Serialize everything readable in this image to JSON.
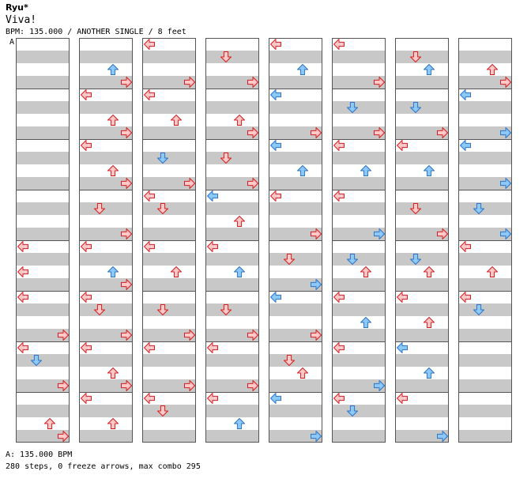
{
  "header": {
    "artist": "Ryu*",
    "title": "Viva!",
    "info": "BPM: 135.000 / ANOTHER SINGLE / 8 feet",
    "marker": "A"
  },
  "footer": {
    "bpm": "A: 135.000 BPM",
    "stats": "280 steps, 0 freeze arrows, max combo 295"
  },
  "colors": {
    "red_fill": "#ffc8c8",
    "red_stroke": "#d81c1c",
    "blue_fill": "#8cc8f8",
    "blue_stroke": "#2c74c8",
    "band": "#c8c8c8",
    "border": "#555555"
  },
  "chart": {
    "columns": 8,
    "measures_per_column": 8,
    "steps": [
      [
        0,
        4,
        0,
        "L",
        "r"
      ],
      [
        0,
        4,
        2,
        "L",
        "r"
      ],
      [
        0,
        5,
        0,
        "L",
        "r"
      ],
      [
        0,
        5,
        3,
        "R",
        "r"
      ],
      [
        0,
        6,
        0,
        "L",
        "r"
      ],
      [
        0,
        6,
        1,
        "D",
        "b"
      ],
      [
        0,
        6,
        3,
        "R",
        "r"
      ],
      [
        0,
        7,
        2,
        "U",
        "r"
      ],
      [
        0,
        7,
        3,
        "R",
        "r"
      ],
      [
        1,
        0,
        3,
        "R",
        "r"
      ],
      [
        1,
        0,
        2,
        "U",
        "b"
      ],
      [
        1,
        1,
        0,
        "L",
        "r"
      ],
      [
        1,
        1,
        2,
        "U",
        "r"
      ],
      [
        1,
        1,
        3,
        "R",
        "r"
      ],
      [
        1,
        2,
        0,
        "L",
        "r"
      ],
      [
        1,
        2,
        2,
        "U",
        "r"
      ],
      [
        1,
        2,
        3,
        "R",
        "r"
      ],
      [
        1,
        3,
        1,
        "D",
        "r"
      ],
      [
        1,
        3,
        3,
        "R",
        "r"
      ],
      [
        1,
        4,
        0,
        "L",
        "r"
      ],
      [
        1,
        4,
        2,
        "U",
        "b"
      ],
      [
        1,
        4,
        3,
        "R",
        "r"
      ],
      [
        1,
        5,
        0,
        "L",
        "r"
      ],
      [
        1,
        5,
        1,
        "D",
        "r"
      ],
      [
        1,
        5,
        3,
        "R",
        "r"
      ],
      [
        1,
        6,
        0,
        "L",
        "r"
      ],
      [
        1,
        6,
        2,
        "U",
        "r"
      ],
      [
        1,
        6,
        3,
        "R",
        "r"
      ],
      [
        1,
        7,
        0,
        "L",
        "r"
      ],
      [
        1,
        7,
        2,
        "U",
        "r"
      ],
      [
        2,
        0,
        3,
        "R",
        "r"
      ],
      [
        2,
        0,
        0,
        "L",
        "r"
      ],
      [
        2,
        1,
        0,
        "L",
        "r"
      ],
      [
        2,
        1,
        2,
        "U",
        "r"
      ],
      [
        2,
        2,
        1,
        "D",
        "b"
      ],
      [
        2,
        2,
        3,
        "R",
        "r"
      ],
      [
        2,
        3,
        0,
        "L",
        "r"
      ],
      [
        2,
        3,
        1,
        "D",
        "r"
      ],
      [
        2,
        4,
        0,
        "L",
        "r"
      ],
      [
        2,
        4,
        2,
        "U",
        "r"
      ],
      [
        2,
        5,
        3,
        "R",
        "r"
      ],
      [
        2,
        5,
        1,
        "D",
        "r"
      ],
      [
        2,
        6,
        0,
        "L",
        "r"
      ],
      [
        2,
        6,
        3,
        "R",
        "r"
      ],
      [
        2,
        7,
        0,
        "L",
        "r"
      ],
      [
        2,
        7,
        1,
        "D",
        "r"
      ],
      [
        3,
        0,
        3,
        "R",
        "r"
      ],
      [
        3,
        0,
        1,
        "D",
        "r"
      ],
      [
        3,
        1,
        2,
        "U",
        "r"
      ],
      [
        3,
        1,
        3,
        "R",
        "r"
      ],
      [
        3,
        2,
        1,
        "D",
        "r"
      ],
      [
        3,
        2,
        3,
        "R",
        "r"
      ],
      [
        3,
        3,
        0,
        "L",
        "b"
      ],
      [
        3,
        3,
        2,
        "U",
        "r"
      ],
      [
        3,
        4,
        0,
        "L",
        "r"
      ],
      [
        3,
        4,
        2,
        "U",
        "b"
      ],
      [
        3,
        5,
        1,
        "D",
        "r"
      ],
      [
        3,
        5,
        3,
        "R",
        "r"
      ],
      [
        3,
        6,
        0,
        "L",
        "r"
      ],
      [
        3,
        6,
        3,
        "R",
        "r"
      ],
      [
        3,
        7,
        0,
        "L",
        "r"
      ],
      [
        3,
        7,
        2,
        "U",
        "b"
      ],
      [
        4,
        0,
        0,
        "L",
        "r"
      ],
      [
        4,
        0,
        2,
        "U",
        "b"
      ],
      [
        4,
        1,
        0,
        "L",
        "b"
      ],
      [
        4,
        1,
        3,
        "R",
        "r"
      ],
      [
        4,
        2,
        0,
        "L",
        "b"
      ],
      [
        4,
        2,
        2,
        "U",
        "b"
      ],
      [
        4,
        3,
        0,
        "L",
        "r"
      ],
      [
        4,
        3,
        3,
        "R",
        "r"
      ],
      [
        4,
        4,
        1,
        "D",
        "r"
      ],
      [
        4,
        4,
        3,
        "R",
        "b"
      ],
      [
        4,
        5,
        0,
        "L",
        "b"
      ],
      [
        4,
        5,
        3,
        "R",
        "r"
      ],
      [
        4,
        6,
        1,
        "D",
        "r"
      ],
      [
        4,
        6,
        2,
        "U",
        "r"
      ],
      [
        4,
        7,
        0,
        "L",
        "b"
      ],
      [
        4,
        7,
        3,
        "R",
        "b"
      ],
      [
        5,
        0,
        0,
        "L",
        "r"
      ],
      [
        5,
        0,
        3,
        "R",
        "r"
      ],
      [
        5,
        1,
        1,
        "D",
        "b"
      ],
      [
        5,
        1,
        3,
        "R",
        "r"
      ],
      [
        5,
        2,
        0,
        "L",
        "r"
      ],
      [
        5,
        2,
        2,
        "U",
        "b"
      ],
      [
        5,
        3,
        0,
        "L",
        "r"
      ],
      [
        5,
        3,
        3,
        "R",
        "b"
      ],
      [
        5,
        4,
        1,
        "D",
        "b"
      ],
      [
        5,
        4,
        2,
        "U",
        "r"
      ],
      [
        5,
        5,
        0,
        "L",
        "r"
      ],
      [
        5,
        5,
        2,
        "U",
        "b"
      ],
      [
        5,
        6,
        0,
        "L",
        "r"
      ],
      [
        5,
        6,
        3,
        "R",
        "b"
      ],
      [
        5,
        7,
        0,
        "L",
        "r"
      ],
      [
        5,
        7,
        1,
        "D",
        "b"
      ],
      [
        6,
        0,
        1,
        "D",
        "r"
      ],
      [
        6,
        0,
        2,
        "U",
        "b"
      ],
      [
        6,
        1,
        1,
        "D",
        "b"
      ],
      [
        6,
        1,
        3,
        "R",
        "r"
      ],
      [
        6,
        2,
        0,
        "L",
        "r"
      ],
      [
        6,
        2,
        2,
        "U",
        "b"
      ],
      [
        6,
        3,
        1,
        "D",
        "r"
      ],
      [
        6,
        3,
        3,
        "R",
        "r"
      ],
      [
        6,
        4,
        1,
        "D",
        "b"
      ],
      [
        6,
        4,
        2,
        "U",
        "r"
      ],
      [
        6,
        5,
        0,
        "L",
        "r"
      ],
      [
        6,
        5,
        2,
        "U",
        "r"
      ],
      [
        6,
        6,
        0,
        "L",
        "b"
      ],
      [
        6,
        6,
        2,
        "U",
        "b"
      ],
      [
        6,
        7,
        0,
        "L",
        "r"
      ],
      [
        6,
        7,
        3,
        "R",
        "b"
      ],
      [
        7,
        0,
        2,
        "U",
        "r"
      ],
      [
        7,
        0,
        3,
        "R",
        "r"
      ],
      [
        7,
        1,
        0,
        "L",
        "b"
      ],
      [
        7,
        1,
        3,
        "R",
        "b"
      ],
      [
        7,
        2,
        0,
        "L",
        "b"
      ],
      [
        7,
        2,
        3,
        "R",
        "b"
      ],
      [
        7,
        3,
        1,
        "D",
        "b"
      ],
      [
        7,
        3,
        3,
        "R",
        "b"
      ],
      [
        7,
        4,
        0,
        "L",
        "r"
      ],
      [
        7,
        4,
        2,
        "U",
        "r"
      ],
      [
        7,
        5,
        0,
        "L",
        "r"
      ],
      [
        7,
        5,
        1,
        "D",
        "b"
      ]
    ]
  }
}
